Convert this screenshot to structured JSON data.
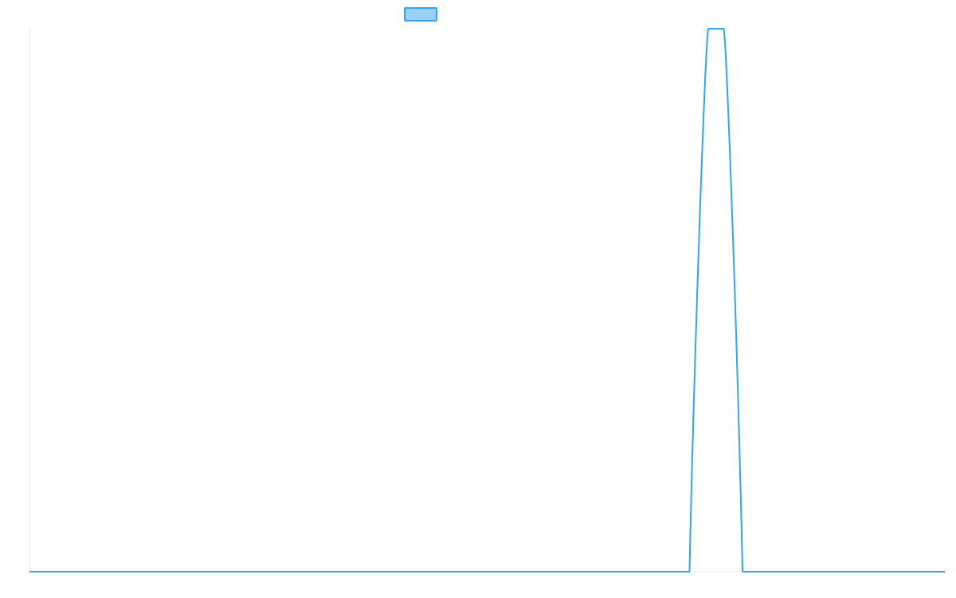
{
  "chart_data": {
    "type": "line",
    "title": "",
    "xlabel": "",
    "ylabel": "",
    "legend": {
      "position": "top-center",
      "entries": [
        {
          "label": "",
          "color": "#36a2eb"
        }
      ]
    },
    "grid": false,
    "x": [
      0,
      1,
      2,
      3,
      4,
      5,
      6,
      7,
      8,
      9,
      10,
      11,
      12,
      13,
      14,
      15,
      16,
      17,
      18,
      19,
      20
    ],
    "xlim": [
      0,
      20
    ],
    "ylim": [
      0,
      1
    ],
    "series": [
      {
        "name": "",
        "color": "#36a2eb",
        "fill": "rgba(54,162,235,0.5)",
        "values": [
          0,
          0,
          0,
          0,
          0,
          0,
          0,
          0,
          0,
          0,
          0,
          0,
          0,
          0,
          0,
          1,
          0,
          0,
          0,
          0,
          0
        ]
      }
    ]
  }
}
